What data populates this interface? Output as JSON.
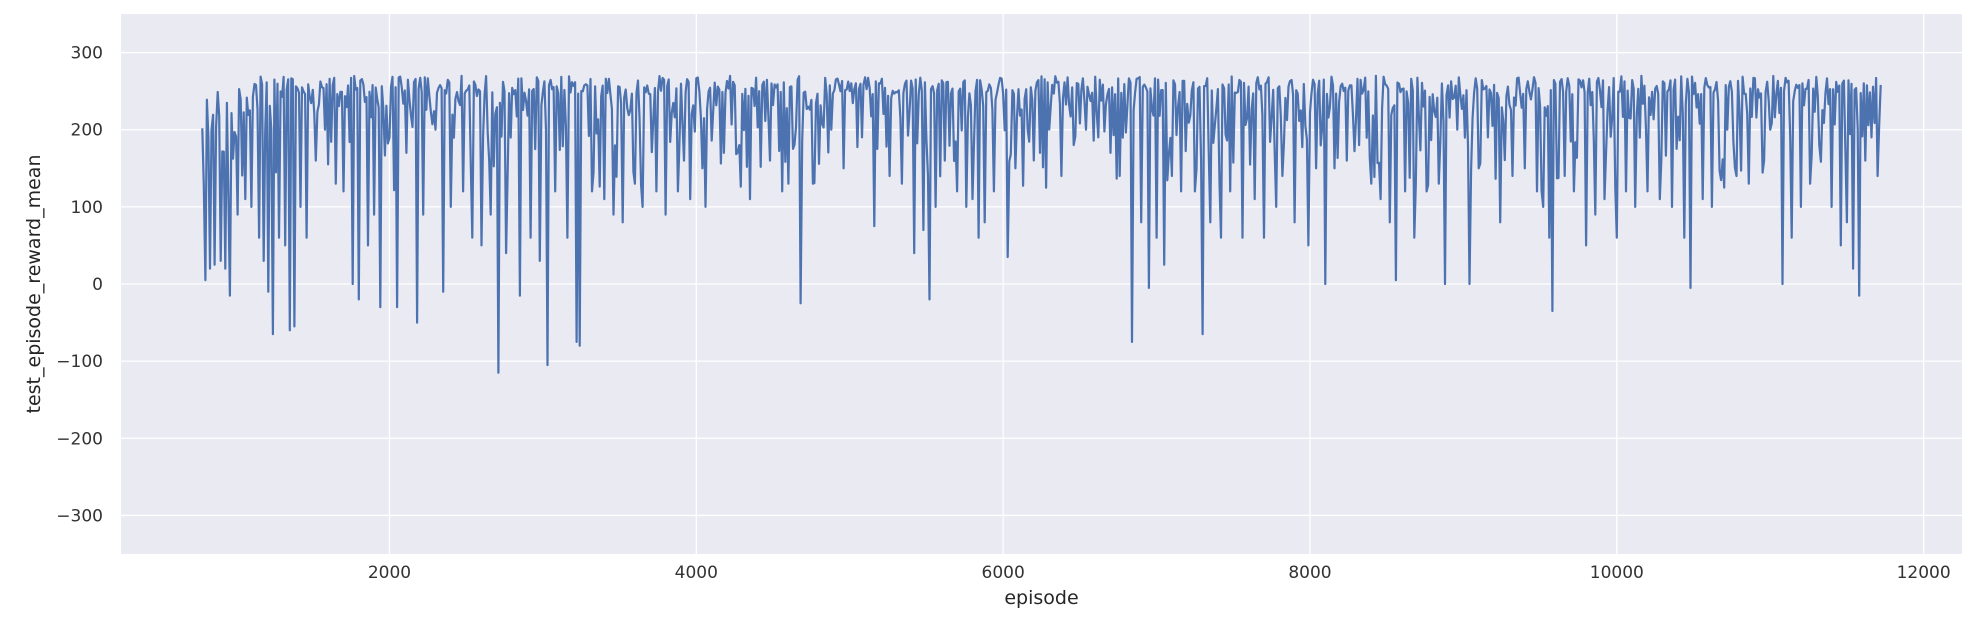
{
  "chart_data": {
    "type": "line",
    "title": "",
    "xlabel": "episode",
    "ylabel": "test_episode_reward_mean",
    "xlim": [
      250,
      12250
    ],
    "ylim": [
      -350,
      350
    ],
    "xticks": [
      2000,
      4000,
      6000,
      8000,
      10000,
      12000
    ],
    "xtick_labels": [
      "2000",
      "4000",
      "6000",
      "8000",
      "10000",
      "12000"
    ],
    "yticks": [
      300,
      200,
      100,
      0,
      -100,
      -200,
      -300
    ],
    "ytick_labels": [
      "300",
      "200",
      "100",
      "0",
      "−100",
      "−200",
      "−300"
    ],
    "grid": true,
    "background_color": "#eaeaf2",
    "grid_color": "#ffffff",
    "line_color": "#4c72b0",
    "x_start": 780,
    "x_end": 11720,
    "x_step": 10,
    "baseline": 258,
    "dips": [
      [
        800,
        5
      ],
      [
        830,
        20
      ],
      [
        860,
        25
      ],
      [
        900,
        30
      ],
      [
        930,
        20
      ],
      [
        960,
        -15
      ],
      [
        1010,
        90
      ],
      [
        1060,
        110
      ],
      [
        1100,
        100
      ],
      [
        1150,
        60
      ],
      [
        1180,
        30
      ],
      [
        1210,
        -10
      ],
      [
        1240,
        -65
      ],
      [
        1280,
        60
      ],
      [
        1320,
        50
      ],
      [
        1350,
        -60
      ],
      [
        1380,
        -55
      ],
      [
        1420,
        100
      ],
      [
        1460,
        60
      ],
      [
        1520,
        160
      ],
      [
        1580,
        200
      ],
      [
        1650,
        130
      ],
      [
        1700,
        120
      ],
      [
        1760,
        0
      ],
      [
        1800,
        -20
      ],
      [
        1860,
        50
      ],
      [
        1900,
        90
      ],
      [
        1940,
        -30
      ],
      [
        2000,
        190
      ],
      [
        2050,
        -30
      ],
      [
        2110,
        170
      ],
      [
        2180,
        -50
      ],
      [
        2220,
        90
      ],
      [
        2300,
        200
      ],
      [
        2350,
        -10
      ],
      [
        2400,
        100
      ],
      [
        2480,
        120
      ],
      [
        2540,
        60
      ],
      [
        2600,
        50
      ],
      [
        2660,
        90
      ],
      [
        2710,
        -115
      ],
      [
        2760,
        40
      ],
      [
        2850,
        -15
      ],
      [
        2920,
        60
      ],
      [
        2980,
        30
      ],
      [
        3030,
        -105
      ],
      [
        3080,
        120
      ],
      [
        3160,
        60
      ],
      [
        3220,
        -75
      ],
      [
        3240,
        -80
      ],
      [
        3320,
        120
      ],
      [
        3400,
        110
      ],
      [
        3460,
        90
      ],
      [
        3520,
        80
      ],
      [
        3600,
        130
      ],
      [
        3650,
        100
      ],
      [
        3740,
        120
      ],
      [
        3800,
        90
      ],
      [
        3880,
        120
      ],
      [
        3920,
        160
      ],
      [
        3960,
        110
      ],
      [
        4040,
        150
      ],
      [
        4060,
        100
      ],
      [
        4180,
        170
      ],
      [
        4280,
        180
      ],
      [
        4350,
        110
      ],
      [
        4480,
        160
      ],
      [
        4560,
        120
      ],
      [
        4600,
        130
      ],
      [
        4680,
        -25
      ],
      [
        4760,
        130
      ],
      [
        4880,
        200
      ],
      [
        4960,
        150
      ],
      [
        5080,
        190
      ],
      [
        5160,
        75
      ],
      [
        5260,
        140
      ],
      [
        5340,
        130
      ],
      [
        5420,
        40
      ],
      [
        5480,
        70
      ],
      [
        5520,
        -20
      ],
      [
        5560,
        100
      ],
      [
        5620,
        160
      ],
      [
        5700,
        120
      ],
      [
        5760,
        100
      ],
      [
        5800,
        110
      ],
      [
        5840,
        60
      ],
      [
        5880,
        80
      ],
      [
        5940,
        120
      ],
      [
        6030,
        35
      ],
      [
        6080,
        150
      ],
      [
        6160,
        200
      ],
      [
        6240,
        170
      ],
      [
        6300,
        200
      ],
      [
        6380,
        140
      ],
      [
        6460,
        180
      ],
      [
        6540,
        200
      ],
      [
        6620,
        190
      ],
      [
        6700,
        170
      ],
      [
        6760,
        140
      ],
      [
        6840,
        -75
      ],
      [
        6900,
        80
      ],
      [
        6950,
        -5
      ],
      [
        7000,
        60
      ],
      [
        7050,
        25
      ],
      [
        7100,
        140
      ],
      [
        7160,
        120
      ],
      [
        7250,
        120
      ],
      [
        7300,
        -65
      ],
      [
        7350,
        80
      ],
      [
        7420,
        60
      ],
      [
        7480,
        120
      ],
      [
        7560,
        60
      ],
      [
        7640,
        110
      ],
      [
        7700,
        60
      ],
      [
        7780,
        100
      ],
      [
        7820,
        140
      ],
      [
        7900,
        80
      ],
      [
        7990,
        50
      ],
      [
        8040,
        150
      ],
      [
        8100,
        0
      ],
      [
        8160,
        150
      ],
      [
        8240,
        160
      ],
      [
        8320,
        180
      ],
      [
        8400,
        130
      ],
      [
        8460,
        110
      ],
      [
        8520,
        80
      ],
      [
        8560,
        5
      ],
      [
        8620,
        120
      ],
      [
        8680,
        60
      ],
      [
        8760,
        120
      ],
      [
        8840,
        130
      ],
      [
        8880,
        0
      ],
      [
        8960,
        200
      ],
      [
        9040,
        0
      ],
      [
        9100,
        150
      ],
      [
        9160,
        190
      ],
      [
        9240,
        80
      ],
      [
        9320,
        140
      ],
      [
        9400,
        150
      ],
      [
        9480,
        120
      ],
      [
        9520,
        100
      ],
      [
        9560,
        60
      ],
      [
        9580,
        -35
      ],
      [
        9660,
        140
      ],
      [
        9720,
        120
      ],
      [
        9800,
        50
      ],
      [
        9860,
        90
      ],
      [
        9920,
        110
      ],
      [
        10000,
        60
      ],
      [
        10060,
        120
      ],
      [
        10120,
        100
      ],
      [
        10200,
        120
      ],
      [
        10280,
        110
      ],
      [
        10360,
        100
      ],
      [
        10440,
        60
      ],
      [
        10480,
        -5
      ],
      [
        10560,
        110
      ],
      [
        10620,
        100
      ],
      [
        10720,
        200
      ],
      [
        10780,
        140
      ],
      [
        10860,
        130
      ],
      [
        10960,
        160
      ],
      [
        11000,
        200
      ],
      [
        11080,
        0
      ],
      [
        11140,
        60
      ],
      [
        11200,
        100
      ],
      [
        11260,
        130
      ],
      [
        11320,
        180
      ],
      [
        11400,
        100
      ],
      [
        11460,
        50
      ],
      [
        11500,
        80
      ],
      [
        11540,
        20
      ],
      [
        11580,
        -15
      ],
      [
        11620,
        160
      ],
      [
        11660,
        190
      ],
      [
        11700,
        140
      ]
    ]
  }
}
